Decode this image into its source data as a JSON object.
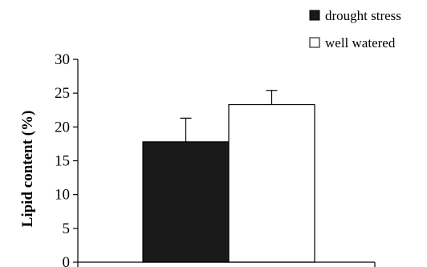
{
  "chart_data": {
    "type": "bar",
    "categories": [
      ""
    ],
    "series": [
      {
        "name": "drought stress",
        "values": [
          17.8
        ],
        "error": [
          3.5
        ],
        "color": "#1a1a1a"
      },
      {
        "name": "well watered",
        "values": [
          23.3
        ],
        "error": [
          2.1
        ],
        "color": "#ffffff"
      }
    ],
    "xlabel": "",
    "ylabel": "Lipid content (%)",
    "ylim": [
      0,
      30
    ],
    "yticks": [
      "0",
      "5",
      "10",
      "15",
      "20",
      "25",
      "30"
    ],
    "grid": false,
    "legend": "top-right"
  }
}
